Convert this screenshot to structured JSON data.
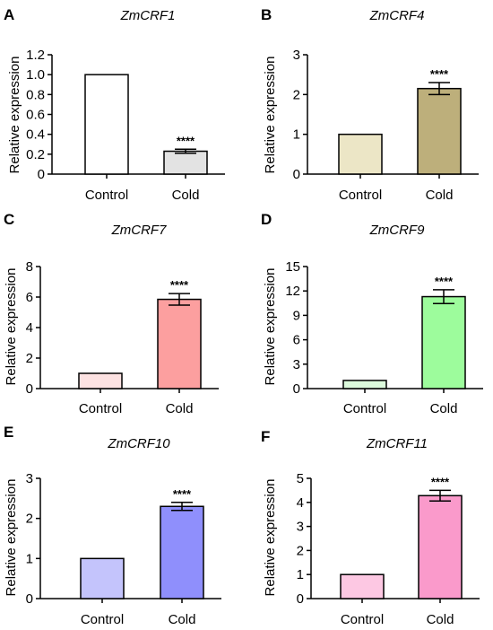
{
  "chart_data": [
    {
      "type": "bar",
      "panel": "A",
      "title": "ZmCRF1",
      "ylabel": "Relative expression",
      "xlabel": "",
      "categories": [
        "Control",
        "Cold"
      ],
      "values": [
        1.0,
        0.23
      ],
      "errors": [
        0,
        0.02
      ],
      "colors": [
        "#ffffff",
        "#e3e3e3"
      ],
      "ylim": [
        0,
        1.2
      ],
      "yticks": [
        "0",
        "0.2",
        "0.4",
        "0.6",
        "0.8",
        "1.0",
        "1.2"
      ],
      "yticks_values": [
        0,
        0.2,
        0.4,
        0.6,
        0.8,
        1.0,
        1.2
      ],
      "significance": "****"
    },
    {
      "type": "bar",
      "panel": "B",
      "title": "ZmCRF4",
      "ylabel": "Relative expression",
      "xlabel": "",
      "categories": [
        "Control",
        "Cold"
      ],
      "values": [
        1.0,
        2.15
      ],
      "errors": [
        0,
        0.15
      ],
      "colors": [
        "#ece6c6",
        "#bdaf7b"
      ],
      "ylim": [
        0,
        3
      ],
      "yticks": [
        "0",
        "1",
        "2",
        "3"
      ],
      "yticks_values": [
        0,
        1,
        2,
        3
      ],
      "significance": "****"
    },
    {
      "type": "bar",
      "panel": "C",
      "title": "ZmCRF7",
      "ylabel": "Relative expression",
      "xlabel": "",
      "categories": [
        "Control",
        "Cold"
      ],
      "values": [
        1.0,
        5.85
      ],
      "errors": [
        0,
        0.38
      ],
      "colors": [
        "#fde2e2",
        "#fc9f9f"
      ],
      "ylim": [
        0,
        8
      ],
      "yticks": [
        "0",
        "2",
        "4",
        "6",
        "8"
      ],
      "yticks_values": [
        0,
        2,
        4,
        6,
        8
      ],
      "significance": "****"
    },
    {
      "type": "bar",
      "panel": "D",
      "title": "ZmCRF9",
      "ylabel": "Relative expression",
      "xlabel": "",
      "categories": [
        "Control",
        "Cold"
      ],
      "values": [
        1.0,
        11.3
      ],
      "errors": [
        0,
        0.85
      ],
      "colors": [
        "#dcfadc",
        "#9dfc9c"
      ],
      "ylim": [
        0,
        15
      ],
      "yticks": [
        "0",
        "3",
        "6",
        "9",
        "12",
        "15"
      ],
      "yticks_values": [
        0,
        3,
        6,
        9,
        12,
        15
      ],
      "significance": "****"
    },
    {
      "type": "bar",
      "panel": "E",
      "title": "ZmCRF10",
      "ylabel": "Relative expression",
      "xlabel": "",
      "categories": [
        "Control",
        "Cold"
      ],
      "values": [
        1.0,
        2.3
      ],
      "errors": [
        0,
        0.1
      ],
      "colors": [
        "#c4c4fc",
        "#8f8ffc"
      ],
      "ylim": [
        0,
        3
      ],
      "yticks": [
        "0",
        "1",
        "2",
        "3"
      ],
      "yticks_values": [
        0,
        1,
        2,
        3
      ],
      "significance": "****"
    },
    {
      "type": "bar",
      "panel": "F",
      "title": "ZmCRF11",
      "ylabel": "Relative expression",
      "xlabel": "",
      "categories": [
        "Control",
        "Cold"
      ],
      "values": [
        1.0,
        4.28
      ],
      "errors": [
        0,
        0.22
      ],
      "colors": [
        "#fdc8e3",
        "#fa9acb"
      ],
      "ylim": [
        0,
        5
      ],
      "yticks": [
        "0",
        "1",
        "2",
        "3",
        "4",
        "5"
      ],
      "yticks_values": [
        0,
        1,
        2,
        3,
        4,
        5
      ],
      "significance": "****"
    }
  ]
}
